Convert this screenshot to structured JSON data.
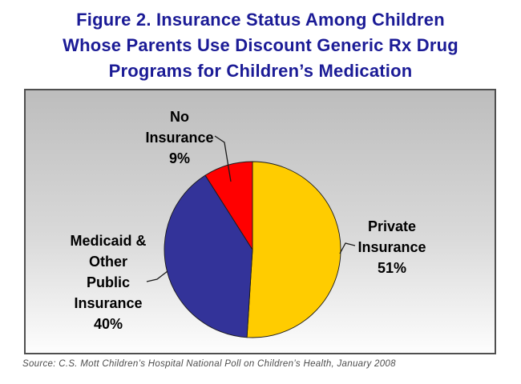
{
  "title": {
    "lines": [
      "Figure 2. Insurance Status Among Children",
      "Whose Parents Use Discount Generic Rx Drug",
      "Programs for Children’s Medication"
    ],
    "color": "#1b1b96"
  },
  "source_note": "Source: C.S. Mott Children’s Hospital National Poll on Children’s Health, January 2008",
  "chart_data": {
    "type": "pie",
    "title": "Insurance Status Among Children Whose Parents Use Discount Generic Rx Drug Programs for Children's Medication",
    "start_angle_deg": 0,
    "direction": "clockwise",
    "legend_position": "none",
    "plot_bg": {
      "gradient_top": "#bdbdbd",
      "gradient_bottom": "#fdfdfd"
    },
    "slice_outline_color": "#1a1a1a",
    "slices": [
      {
        "name": "Private Insurance",
        "value_pct": 51,
        "color": "#FFCC00",
        "label_lines": [
          "Private",
          "Insurance",
          "51%"
        ]
      },
      {
        "name": "Medicaid & Other Public Insurance",
        "value_pct": 40,
        "color": "#333399",
        "label_lines": [
          "Medicaid &",
          "Other",
          "Public",
          "Insurance",
          "40%"
        ]
      },
      {
        "name": "No Insurance",
        "value_pct": 9,
        "color": "#FF0000",
        "label_lines": [
          "No",
          "Insurance",
          "9%"
        ]
      }
    ]
  }
}
